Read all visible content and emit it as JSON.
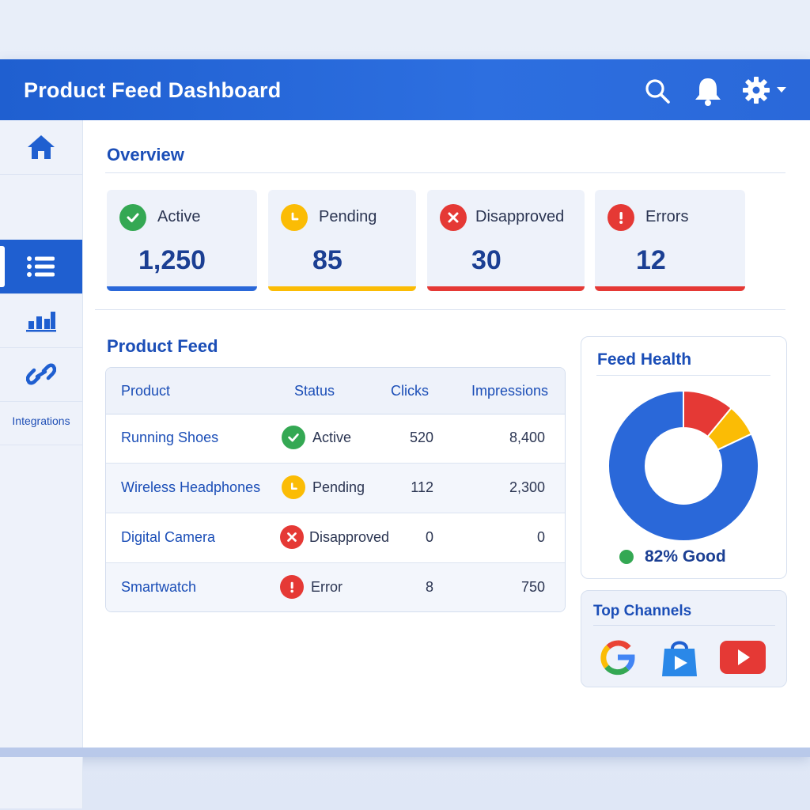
{
  "header": {
    "title": "Product Feed Dashboard"
  },
  "icons": {
    "search": "search-icon",
    "bell": "bell-icon",
    "gear": "gear-icon",
    "caret": "chevron-down-icon"
  },
  "sidebar": {
    "items": [
      {
        "icon": "home-icon"
      },
      {
        "icon": "list-icon",
        "active": true
      },
      {
        "icon": "bar-chart-icon"
      },
      {
        "icon": "link-icon"
      },
      {
        "label": "Integrations"
      }
    ]
  },
  "overview": {
    "title": "Overview",
    "cards": [
      {
        "label": "Active",
        "value": "1,250",
        "color": "#34a853",
        "icon": "check-icon"
      },
      {
        "label": "Pending",
        "value": "85",
        "color": "#fbbc05",
        "icon": "clock-icon"
      },
      {
        "label": "Disapproved",
        "value": "30",
        "color": "#e53935",
        "icon": "x-icon"
      },
      {
        "label": "Errors",
        "value": "12",
        "color": "#e53935",
        "icon": "exclamation-icon"
      }
    ]
  },
  "feed": {
    "title": "Product Feed",
    "columns": [
      "Product",
      "Status",
      "Clicks",
      "Impressions"
    ],
    "rows": [
      {
        "product": "Running Shoes",
        "status": "Active",
        "clicks": "520",
        "impressions": "8,400"
      },
      {
        "product": "Wireless Headphones",
        "status": "Pending",
        "clicks": "112",
        "impressions": "2,300"
      },
      {
        "product": "Digital Camera",
        "status": "Disapproved",
        "clicks": "0",
        "impressions": "0"
      },
      {
        "product": "Smartwatch",
        "status": "Error",
        "clicks": "8",
        "impressions": "750"
      }
    ]
  },
  "health": {
    "title": "Feed Health",
    "good_label": "82% Good",
    "segments": [
      {
        "status": "good",
        "value": 82,
        "color": "#2a68d9"
      },
      {
        "status": "pending",
        "value": 7,
        "color": "#fbbc05"
      },
      {
        "status": "error",
        "value": 11,
        "color": "#e53935"
      }
    ]
  },
  "channels": {
    "title": "Top Channels",
    "items": [
      {
        "icon": "google-icon"
      },
      {
        "icon": "shopping-bag-icon"
      },
      {
        "icon": "youtube-icon"
      }
    ]
  },
  "colors": {
    "brand": "#2a68d9",
    "active": "#34a853",
    "pending": "#fbbc05",
    "error": "#e53935"
  }
}
